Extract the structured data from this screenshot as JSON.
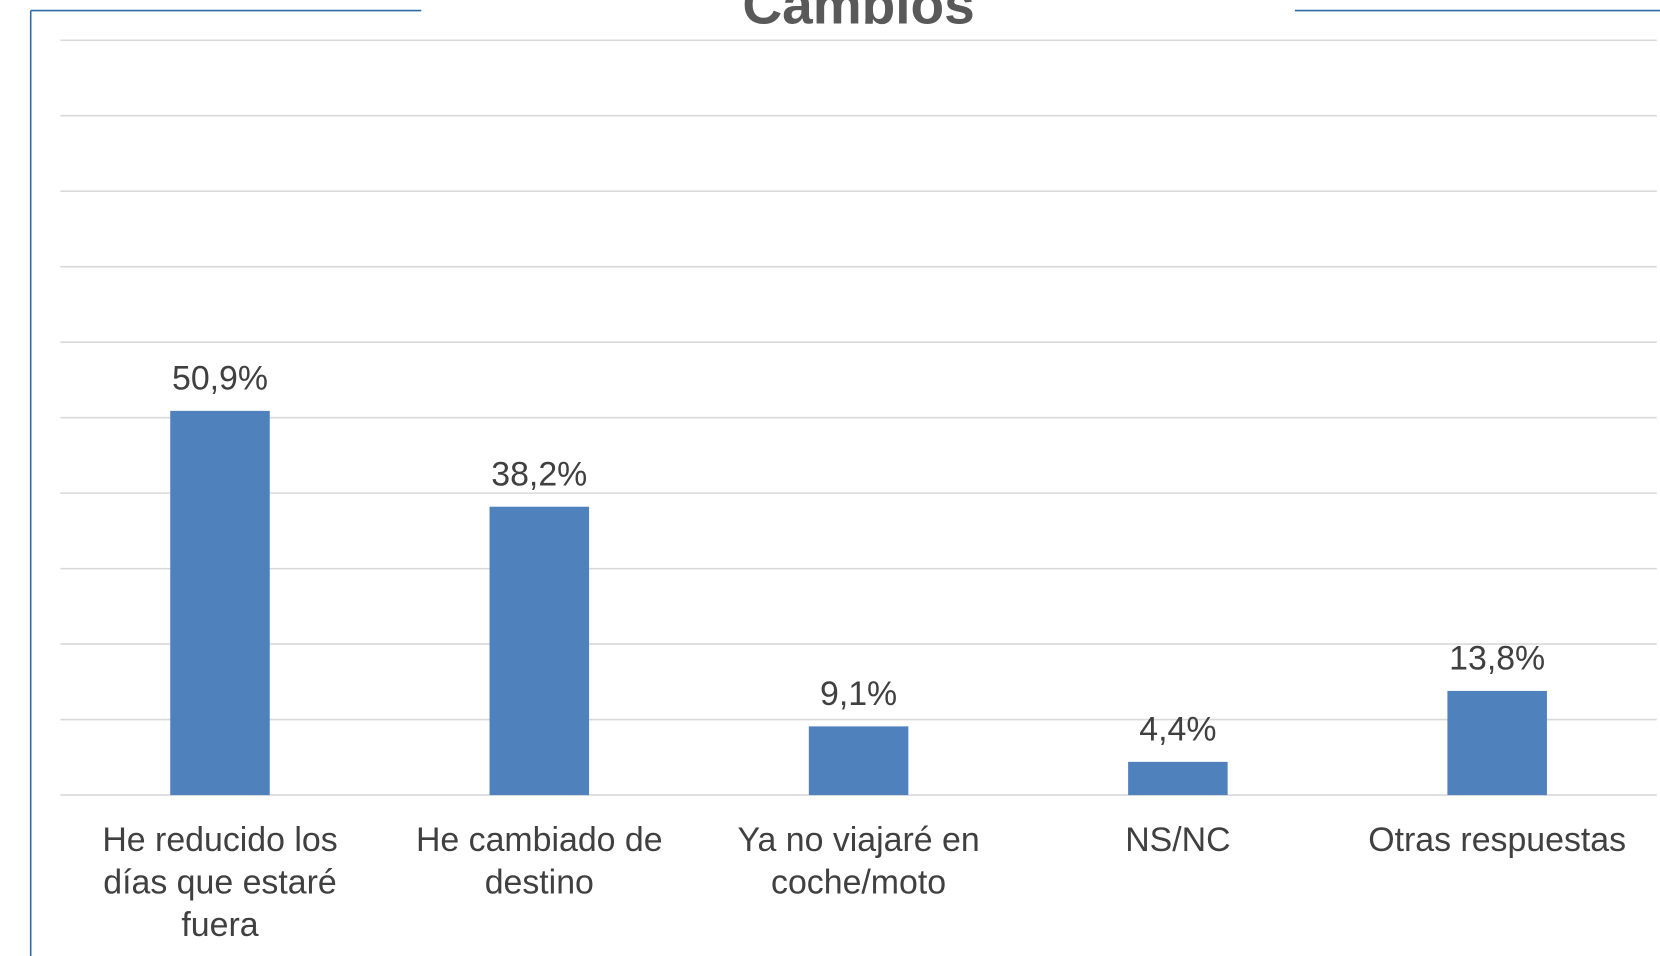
{
  "chart_data": {
    "type": "bar",
    "title": "Cambios",
    "categories": [
      "He reducido los días que estaré fuera",
      "He cambiado de destino",
      "Ya no viajaré en coche/moto",
      "NS/NC",
      "Otras respuestas"
    ],
    "values": [
      50.9,
      38.2,
      9.1,
      4.4,
      13.8
    ],
    "value_labels": [
      "50,9%",
      "38,2%",
      "9,1%",
      "4,4%",
      "13,8%"
    ],
    "color": "#4f81bd",
    "ylim": [
      0,
      100
    ],
    "yticks": [
      0,
      10,
      20,
      30,
      40,
      50,
      60,
      70,
      80,
      90,
      100
    ],
    "grid": true
  }
}
